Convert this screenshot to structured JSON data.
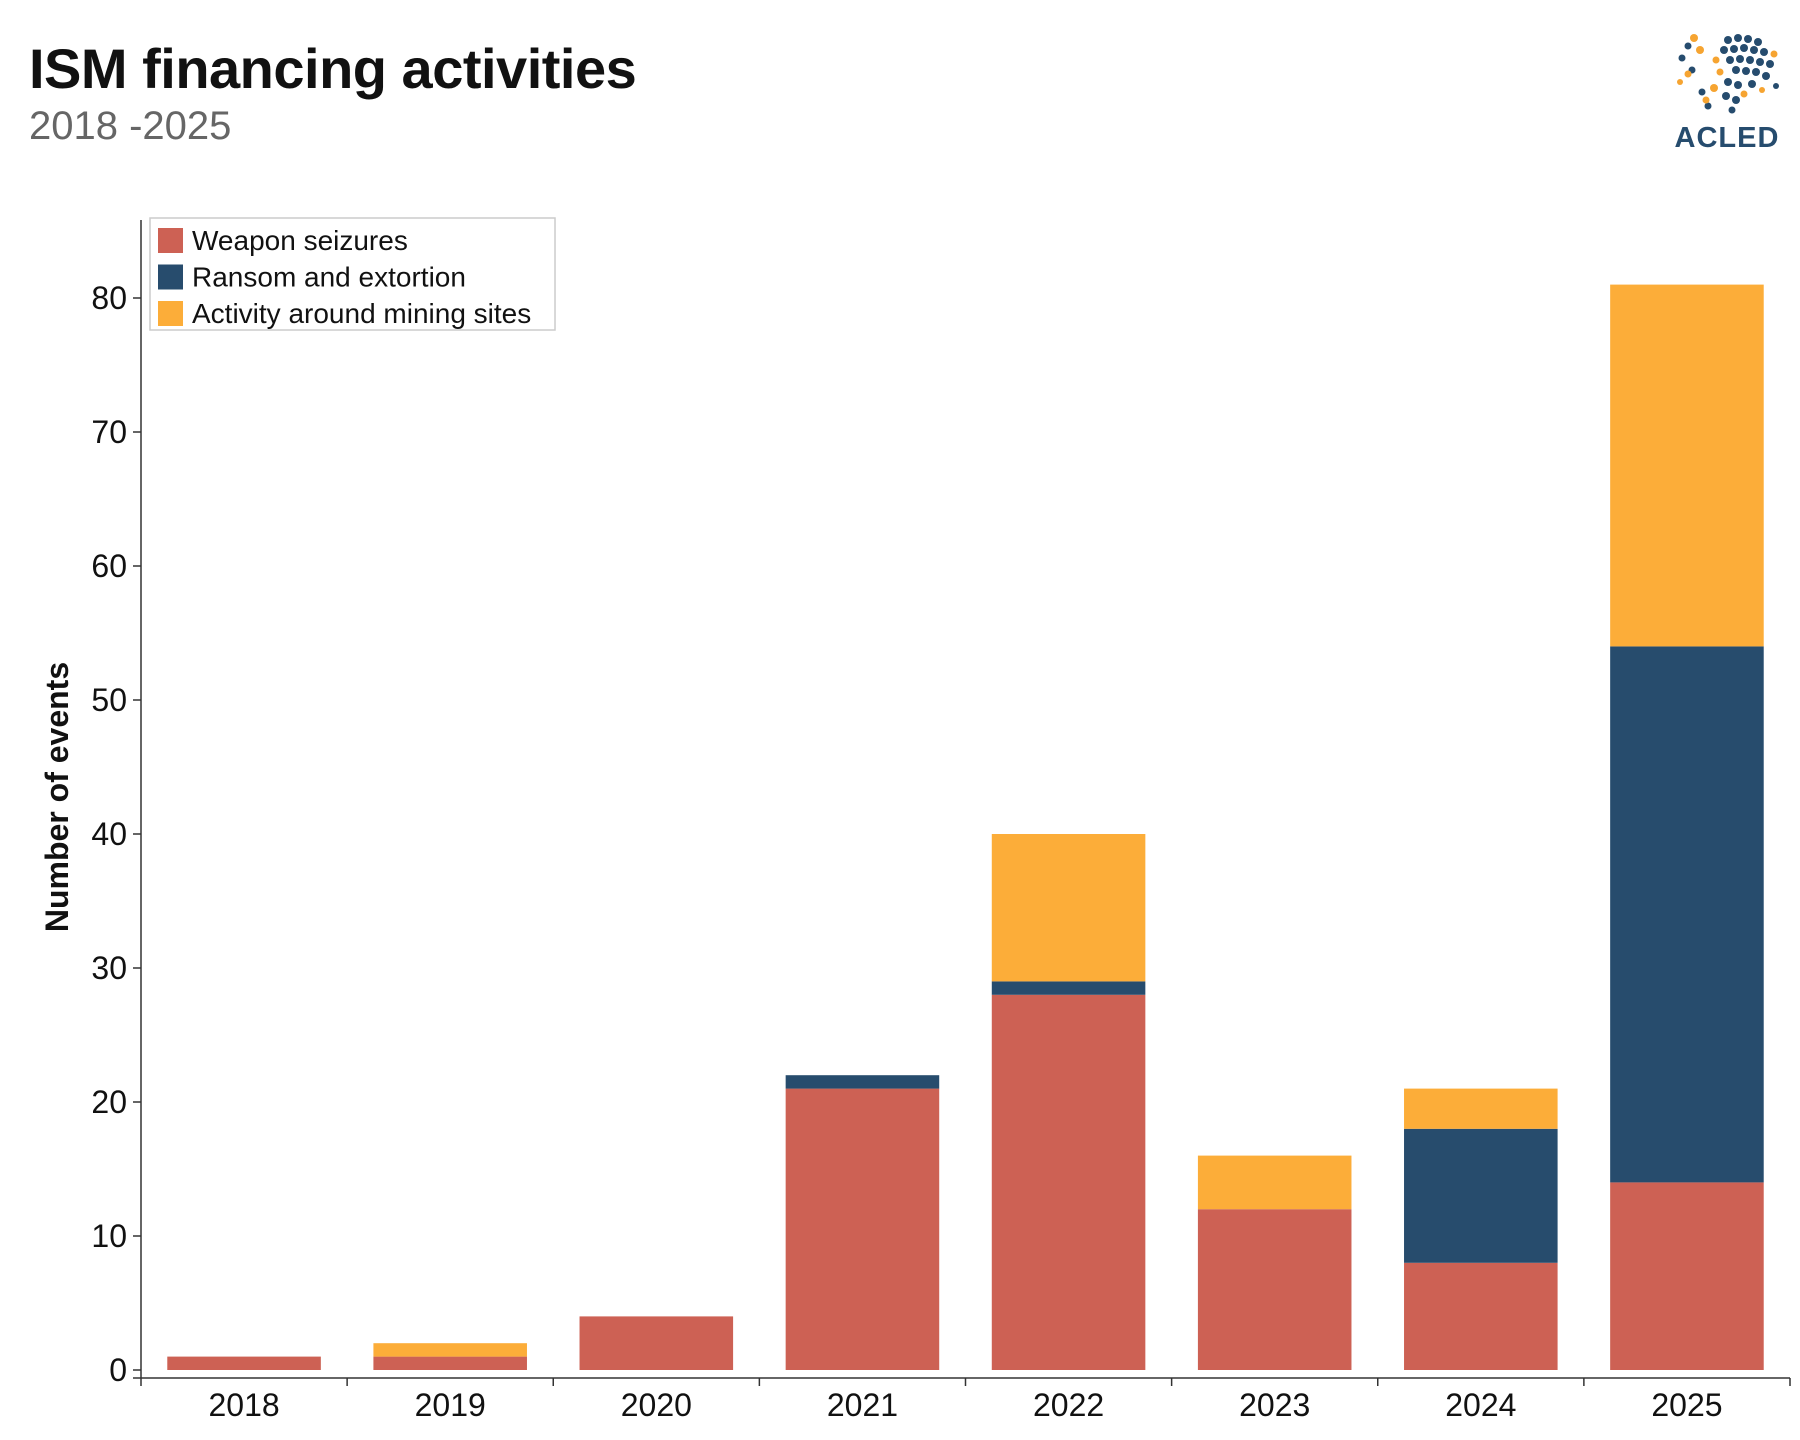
{
  "header": {
    "title": "ISM financing activities",
    "subtitle": "2018 -2025",
    "logo_text": "ACLED"
  },
  "colors": {
    "weapon": "#cd6154",
    "ransom": "#274c6d",
    "mining": "#fcad39",
    "logo_blue": "#264c6e",
    "logo_gold": "#f6a431"
  },
  "chart_data": {
    "type": "bar",
    "stacked": true,
    "title": "ISM financing activities",
    "subtitle": "2018 -2025",
    "xlabel": "",
    "ylabel": "Number of events",
    "ylim": [
      0,
      85
    ],
    "yticks": [
      0,
      10,
      20,
      30,
      40,
      50,
      60,
      70,
      80
    ],
    "grid": false,
    "legend_position": "top-left",
    "categories": [
      "2018",
      "2019",
      "2020",
      "2021",
      "2022",
      "2023",
      "2024",
      "2025"
    ],
    "series": [
      {
        "name": "Weapon seizures",
        "color": "#cd6154",
        "values": [
          1,
          1,
          4,
          21,
          28,
          12,
          8,
          14
        ]
      },
      {
        "name": "Ransom and extortion",
        "color": "#274c6d",
        "values": [
          0,
          0,
          0,
          1,
          1,
          0,
          10,
          40
        ]
      },
      {
        "name": "Activity around mining sites",
        "color": "#fcad39",
        "values": [
          0,
          1,
          0,
          0,
          11,
          4,
          3,
          27
        ]
      }
    ]
  }
}
